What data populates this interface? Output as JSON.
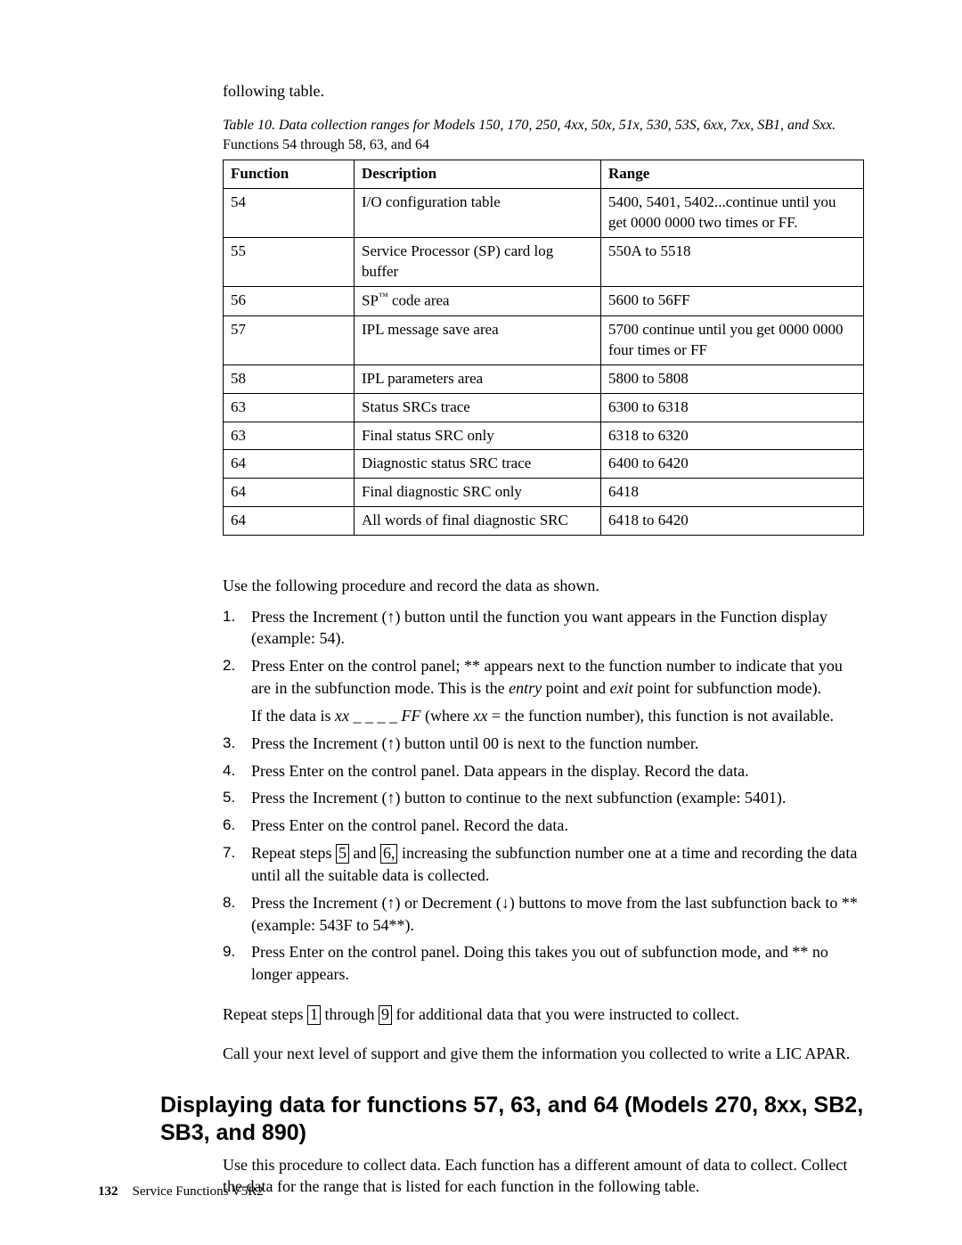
{
  "lead_in": "following table.",
  "table_caption_italic": "Table 10. Data collection ranges for Models 150, 170, 250, 4xx, 50x, 51x, 530, 53S, 6xx, 7xx, SB1, and Sxx.",
  "table_caption_plain": " Functions 54 through 58, 63, and 64",
  "table": {
    "headers": [
      "Function",
      "Description",
      "Range"
    ],
    "rows": [
      [
        "54",
        "I/O configuration table",
        "5400, 5401, 5402...continue until you get 0000 0000 two times or FF."
      ],
      [
        "55",
        "Service Processor (SP) card log buffer",
        "550A to 5518"
      ],
      [
        "56",
        "SP™ code area",
        "5600 to 56FF"
      ],
      [
        "57",
        "IPL message save area",
        "5700 continue until you get 0000 0000 four times or FF"
      ],
      [
        "58",
        "IPL parameters area",
        "5800 to 5808"
      ],
      [
        "63",
        "Status SRCs trace",
        "6300 to 6318"
      ],
      [
        "63",
        "Final status SRC only",
        "6318 to 6320"
      ],
      [
        "64",
        "Diagnostic status SRC trace",
        "6400 to 6420"
      ],
      [
        "64",
        "Final diagnostic SRC only",
        "6418"
      ],
      [
        "64",
        "All words of final diagnostic SRC",
        "6418 to 6420"
      ]
    ]
  },
  "proc_intro": "Use the following procedure and record the data as shown.",
  "steps": {
    "s1": "Press the Increment (↑) button until the function you want appears in the Function display (example: 54).",
    "s2_a": "Press Enter on the control panel; ** appears next to the function number to indicate that you are in the subfunction mode. This is the ",
    "s2_entry": "entry",
    "s2_b": " point and ",
    "s2_exit": "exit",
    "s2_c": " point for subfunction mode).",
    "s2_sub_a": "If the data is ",
    "s2_sub_xx": "xx",
    "s2_sub_b": " _ _ _ _ ",
    "s2_sub_ff": "FF",
    "s2_sub_c": " (where ",
    "s2_sub_xx2": "xx",
    "s2_sub_d": " = the function number), this function is not available.",
    "s3": "Press the Increment (↑) button until 00 is next to the function number.",
    "s4": "Press Enter on the control panel. Data appears in the display. Record the data.",
    "s5": "Press the Increment (↑) button to continue to the next subfunction (example: 5401).",
    "s6": "Press Enter on the control panel. Record the data.",
    "s7_a": "Repeat steps ",
    "s7_ref1": "5",
    "s7_b": " and ",
    "s7_ref2": "6,",
    "s7_c": " increasing the subfunction number one at a time and recording the data until all the suitable data is collected.",
    "s8": "Press the Increment (↑) or Decrement (↓) buttons to move from the last subfunction back to ** (example: 543F to 54**).",
    "s9": "Press Enter on the control panel. Doing this takes you out of subfunction mode, and ** no longer appears."
  },
  "repeat_a": "Repeat steps ",
  "repeat_ref1": "1",
  "repeat_b": " through ",
  "repeat_ref2": "9",
  "repeat_c": " for additional data that you were instructed to collect.",
  "call_next": "Call your next level of support and give them the information you collected to write a LIC APAR.",
  "heading2": "Displaying data for functions 57, 63, and 64 (Models 270, 8xx, SB2, SB3, and 890)",
  "section2_para": "Use this procedure to collect data. Each function has a different amount of data to collect. Collect the data for the range that is listed for each function in the following table.",
  "footer_page": "132",
  "footer_text": "Service Functions V5R2"
}
